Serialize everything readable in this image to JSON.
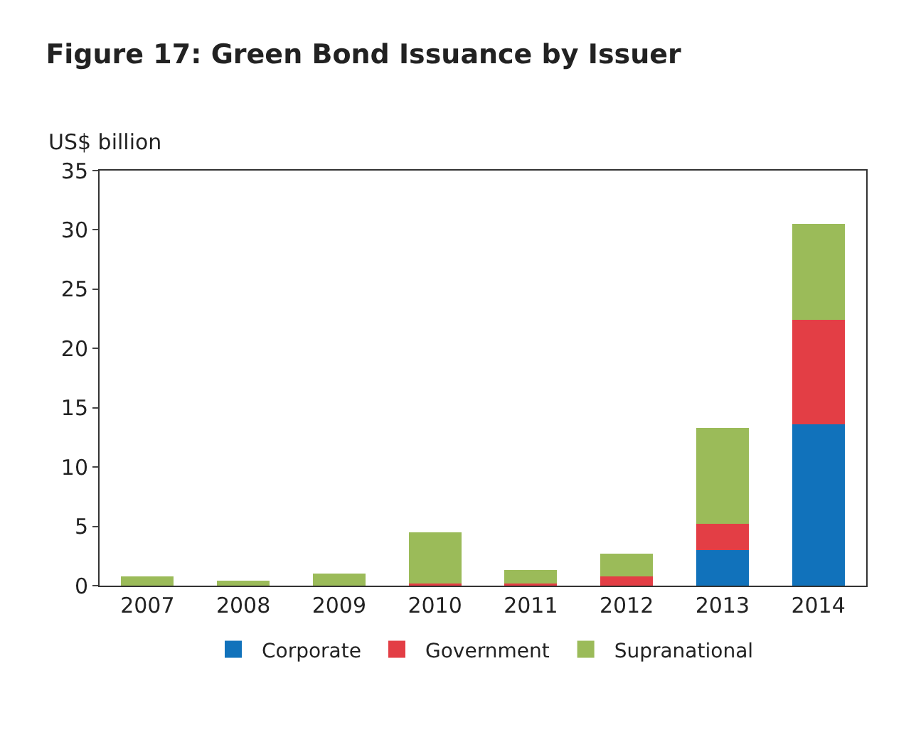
{
  "chart_data": {
    "type": "bar",
    "stacked": true,
    "title": "Figure 17: Green Bond Issuance by Issuer",
    "ylabel": "US$ billion",
    "categories": [
      "2007",
      "2008",
      "2009",
      "2010",
      "2011",
      "2012",
      "2013",
      "2014"
    ],
    "series": [
      {
        "name": "Corporate",
        "color": "#1172bb",
        "values": [
          0,
          0,
          0,
          0,
          0,
          0,
          3.0,
          13.6
        ]
      },
      {
        "name": "Government",
        "color": "#e33e45",
        "values": [
          0,
          0,
          0,
          0.2,
          0.2,
          0.8,
          2.2,
          8.8
        ]
      },
      {
        "name": "Supranational",
        "color": "#9bbb59",
        "values": [
          0.8,
          0.4,
          1.0,
          4.3,
          1.1,
          1.9,
          8.1,
          8.1
        ]
      }
    ],
    "ylim": [
      0,
      35
    ],
    "yticks": [
      0,
      5,
      10,
      15,
      20,
      25,
      30,
      35
    ],
    "legend": "bottom"
  }
}
